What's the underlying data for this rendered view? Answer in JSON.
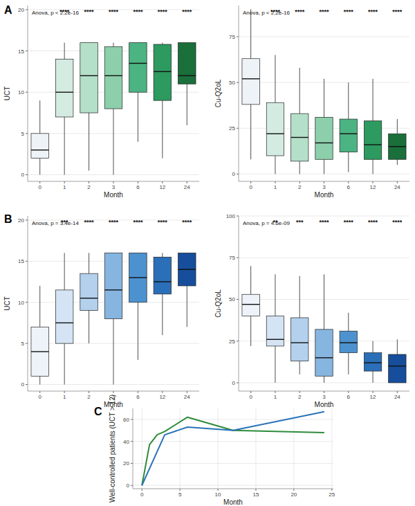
{
  "chart_data": [
    {
      "type": "box",
      "panel": "A",
      "annotation": "Anova, p < 2.2e-16",
      "x_label": "Month",
      "y_label": "UCT",
      "categories": [
        "0",
        "1",
        "2",
        "3",
        "6",
        "12",
        "24"
      ],
      "min": [
        0,
        0,
        0.5,
        0,
        4,
        2,
        6
      ],
      "q1": [
        2,
        7,
        7.5,
        8,
        10,
        9,
        11
      ],
      "median": [
        3,
        10,
        12,
        12,
        13.5,
        12.5,
        12
      ],
      "q3": [
        5,
        14,
        16,
        15.5,
        16,
        15.8,
        16
      ],
      "max": [
        9,
        16,
        16,
        16,
        16,
        16,
        16
      ],
      "significance": [
        null,
        "****",
        "****",
        "****",
        "****",
        "****",
        "****"
      ],
      "colors": [
        "#eef3f7",
        "#d3ebe0",
        "#b4dfc8",
        "#8ccfaa",
        "#4cb383",
        "#2d9a5f",
        "#1a6f3a"
      ],
      "ylim": [
        -0.8,
        20.5
      ],
      "yticks": [
        0,
        5,
        10,
        15,
        20
      ],
      "grid": true
    },
    {
      "type": "box",
      "annotation": "Anova, p < 2.2e-16",
      "x_label": "Month",
      "y_label": "Cu-Q2oL",
      "categories": [
        "0",
        "1",
        "2",
        "3",
        "6",
        "12",
        "24"
      ],
      "min": [
        8,
        0,
        0,
        0,
        1,
        0,
        5
      ],
      "q1": [
        38,
        10,
        7,
        8,
        12,
        8,
        8
      ],
      "median": [
        52,
        22,
        20,
        17,
        22,
        16,
        15
      ],
      "q3": [
        63,
        39,
        33,
        31,
        30,
        29,
        22
      ],
      "max": [
        90,
        65,
        58,
        52,
        50,
        52,
        30
      ],
      "significance": [
        null,
        "****",
        "****",
        "****",
        "****",
        "****",
        "****"
      ],
      "colors": [
        "#eef3f7",
        "#d3ebe0",
        "#b4dfc8",
        "#8ccfaa",
        "#4cb383",
        "#2d9a5f",
        "#1a6f3a"
      ],
      "ylim": [
        -4,
        92
      ],
      "yticks": [
        0,
        25,
        50,
        75
      ],
      "grid": true
    },
    {
      "type": "box",
      "panel": "B",
      "annotation": "Anova, p = 3.4e-14",
      "x_label": "Month",
      "y_label": "UCT",
      "categories": [
        "0",
        "1",
        "2",
        "3",
        "6",
        "12",
        "24"
      ],
      "min": [
        0,
        0,
        5,
        0,
        3,
        6,
        7
      ],
      "q1": [
        1,
        5,
        9,
        8,
        10,
        11,
        12
      ],
      "median": [
        4,
        7.5,
        10.5,
        11.5,
        13,
        12.5,
        14
      ],
      "q3": [
        7,
        11.5,
        13.5,
        16,
        16,
        15.5,
        16
      ],
      "max": [
        12,
        16,
        16,
        16,
        16,
        16,
        16
      ],
      "significance": [
        null,
        "***",
        "****",
        "****",
        "****",
        "****",
        "****"
      ],
      "colors": [
        "#eef3fa",
        "#d4e4f4",
        "#b3d0ec",
        "#86b5e0",
        "#4c92cf",
        "#2a6fb8",
        "#164e9b"
      ],
      "ylim": [
        -0.8,
        20.5
      ],
      "yticks": [
        0,
        5,
        10,
        15,
        20
      ],
      "grid": true
    },
    {
      "type": "box",
      "annotation": "Anova, p = 4.6e-09",
      "x_label": "Month",
      "y_label": "Cu-Q2oL",
      "categories": [
        "0",
        "1",
        "2",
        "3",
        "6",
        "12",
        "24"
      ],
      "min": [
        22,
        0,
        5,
        0,
        5,
        0,
        0
      ],
      "q1": [
        40,
        22,
        13,
        4,
        18,
        7,
        0
      ],
      "median": [
        47,
        26,
        24,
        15,
        24,
        12,
        10
      ],
      "q3": [
        53,
        40,
        39,
        32,
        31,
        18,
        17
      ],
      "max": [
        70,
        65,
        64,
        65,
        42,
        25,
        26
      ],
      "significance": [
        null,
        "**",
        "***",
        "****",
        "****",
        "****",
        "****"
      ],
      "colors": [
        "#eef3fa",
        "#d4e4f4",
        "#b3d0ec",
        "#86b5e0",
        "#4c92cf",
        "#2a6fb8",
        "#164e9b"
      ],
      "ylim": [
        -5,
        100
      ],
      "yticks": [
        0,
        25,
        50,
        75,
        100
      ],
      "grid": true
    },
    {
      "type": "line",
      "panel": "C",
      "x_label": "Month",
      "y_label": "Well-controlled patients (UCT > 12)",
      "series": [
        {
          "color": "#2e8b3a",
          "x": [
            0,
            1,
            2,
            3,
            6,
            12,
            24
          ],
          "values": [
            0,
            37,
            46,
            49,
            62,
            50,
            48
          ]
        },
        {
          "color": "#2a73b8",
          "x": [
            0,
            3,
            6,
            12,
            24
          ],
          "values": [
            0,
            46,
            53,
            50,
            67
          ]
        }
      ],
      "xlim": [
        -1.2,
        25.2
      ],
      "xticks": [
        0,
        5,
        10,
        15,
        20,
        25
      ],
      "ylim": [
        -3,
        70
      ],
      "yticks": [
        0,
        20,
        40,
        60
      ],
      "grid": true
    }
  ]
}
